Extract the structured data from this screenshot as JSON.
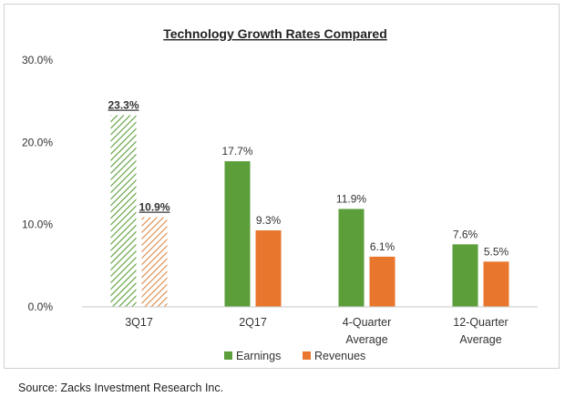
{
  "chart_data": {
    "type": "bar",
    "title": "Technology Growth Rates Compared",
    "categories": [
      [
        "3Q17"
      ],
      [
        "2Q17"
      ],
      [
        "4-Quarter",
        "Average"
      ],
      [
        "12-Quarter",
        "Average"
      ]
    ],
    "series": [
      {
        "name": "Earnings",
        "values": [
          23.3,
          17.7,
          11.9,
          7.6
        ],
        "labels": [
          "23.3%",
          "17.7%",
          "11.9%",
          "7.6%"
        ],
        "color": "#5b9e3a"
      },
      {
        "name": "Revenues",
        "values": [
          10.9,
          9.3,
          6.1,
          5.5
        ],
        "labels": [
          "10.9%",
          "9.3%",
          "6.1%",
          "5.5%"
        ],
        "color": "#e8762d"
      }
    ],
    "highlighted_category": "3Q17",
    "highlight_style": "hatched-bars-bold-underlined-labels",
    "ylim": [
      0,
      30
    ],
    "yticks": [
      0,
      10,
      20,
      30
    ],
    "ytick_labels": [
      "0.0%",
      "10.0%",
      "20.0%",
      "30.0%"
    ],
    "xlabel": "",
    "ylabel": "",
    "grid": false,
    "legend_position": "bottom"
  },
  "footer": {
    "source": "Source: Zacks Investment Research Inc."
  }
}
